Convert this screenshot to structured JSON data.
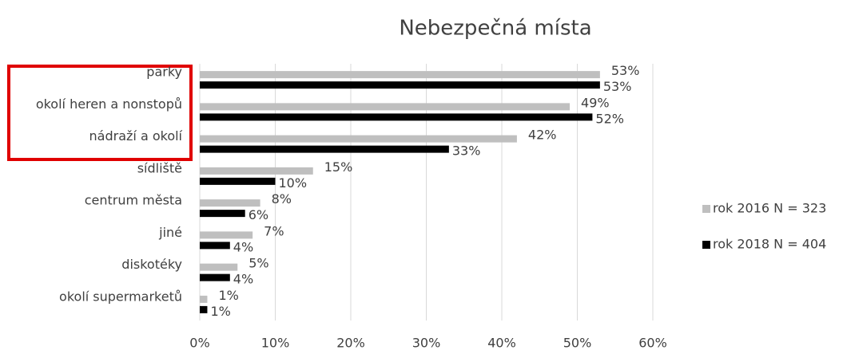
{
  "chart_data": {
    "type": "bar",
    "orientation": "horizontal",
    "title": "Nebezpečná místa",
    "categories": [
      "parky",
      "okolí heren a nonstopů",
      "nádraží a okolí",
      "sídliště",
      "centrum města",
      "jiné",
      "diskotéky",
      "okolí supermarketů"
    ],
    "series": [
      {
        "name": "rok 2016 N = 323",
        "color": "#bfbfbf",
        "values": [
          53,
          49,
          42,
          15,
          8,
          7,
          5,
          1
        ],
        "value_labels": [
          "53%",
          "49%",
          "42%",
          "15%",
          "8%",
          "7%",
          "5%",
          "1%"
        ]
      },
      {
        "name": "rok 2018 N = 404",
        "color": "#000000",
        "values": [
          53,
          52,
          33,
          10,
          6,
          4,
          4,
          1
        ],
        "value_labels": [
          "53%",
          "52%",
          "33%",
          "10%",
          "6%",
          "4%",
          "4%",
          "1%"
        ]
      }
    ],
    "xlim": [
      0,
      60
    ],
    "xticks": [
      {
        "value": 0,
        "label": "0%"
      },
      {
        "value": 10,
        "label": "10%"
      },
      {
        "value": 20,
        "label": "20%"
      },
      {
        "value": 30,
        "label": "30%"
      },
      {
        "value": 40,
        "label": "40%"
      },
      {
        "value": 50,
        "label": "50%"
      },
      {
        "value": 60,
        "label": "60%"
      }
    ],
    "grid": true,
    "legend": "right"
  }
}
